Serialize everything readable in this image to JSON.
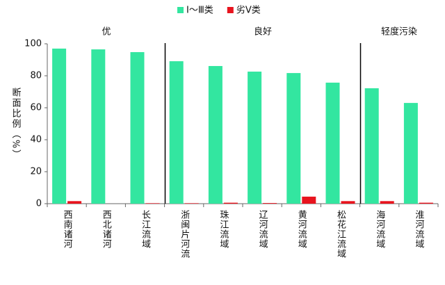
{
  "chart_data": {
    "type": "bar",
    "y_label": "断面比例（%）",
    "annotations": [
      "优",
      "良好",
      "轻度污染"
    ],
    "categories": [
      "西南诸河",
      "西北诸河",
      "长江流域",
      "浙闽片河流",
      "珠江流域",
      "辽河流域",
      "黄河流域",
      "松花江流域",
      "海河流域",
      "淮河流域"
    ],
    "series": [
      {
        "name": "Ⅰ～Ⅲ类",
        "color": "#33e6a0",
        "values": [
          97.0,
          96.5,
          94.8,
          89.1,
          86.1,
          82.6,
          81.7,
          75.7,
          72.2,
          63.0
        ]
      },
      {
        "name": "劣Ⅴ类",
        "color": "#e8141e",
        "values": [
          1.6,
          0,
          0.3,
          0.3,
          0.6,
          0.4,
          4.4,
          1.6,
          1.6,
          0.6
        ]
      }
    ],
    "ylim": [
      0,
      100
    ],
    "yticks": [
      0,
      20,
      40,
      60,
      80,
      100
    ],
    "grid": false
  }
}
